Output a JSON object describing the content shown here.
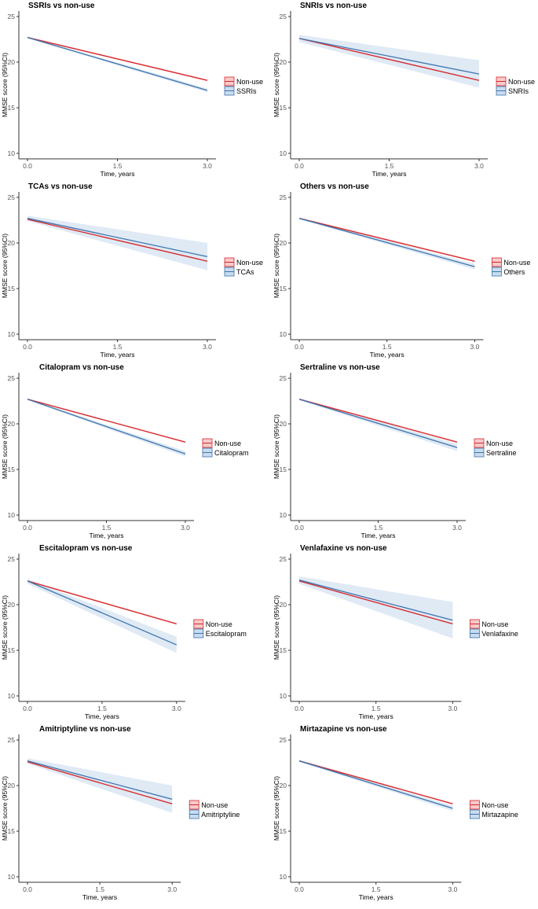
{
  "colors": {
    "nonuse": "#d7262b",
    "drug": "#3d74ad",
    "nonuse_ci": "#f6caca",
    "drug_ci": "#c9dcee",
    "axis": "#333333"
  },
  "chart_data": [
    {
      "type": "line",
      "title": "SSRIs vs non-use",
      "xlabel": "Time, years",
      "ylabel": "MMSE score (95%CI)",
      "xlim": [
        0,
        3
      ],
      "ylim": [
        10,
        25
      ],
      "xticks": [
        "0.0",
        "1.5",
        "3.0"
      ],
      "yticks": [
        "10",
        "15",
        "20",
        "25"
      ],
      "legend": "right",
      "series": [
        {
          "name": "Non-use",
          "x": [
            0,
            3
          ],
          "y": [
            22.7,
            18.0
          ],
          "lower": [
            22.6,
            17.9
          ],
          "upper": [
            22.8,
            18.1
          ]
        },
        {
          "name": "SSRIs",
          "x": [
            0,
            3
          ],
          "y": [
            22.7,
            16.9
          ],
          "lower": [
            22.6,
            16.7
          ],
          "upper": [
            22.8,
            17.1
          ]
        }
      ]
    },
    {
      "type": "line",
      "title": "SNRIs vs non-use",
      "xlabel": "Time, years",
      "ylabel": "MMSE score (95%CI)",
      "xlim": [
        0,
        3
      ],
      "ylim": [
        10,
        25
      ],
      "xticks": [
        "0.0",
        "1.5",
        "3.0"
      ],
      "yticks": [
        "10",
        "15",
        "20",
        "25"
      ],
      "legend": "right",
      "series": [
        {
          "name": "Non-use",
          "x": [
            0,
            3
          ],
          "y": [
            22.6,
            18.0
          ],
          "lower": [
            22.5,
            17.9
          ],
          "upper": [
            22.7,
            18.1
          ]
        },
        {
          "name": "SNRIs",
          "x": [
            0,
            3
          ],
          "y": [
            22.6,
            18.7
          ],
          "lower": [
            22.2,
            17.2
          ],
          "upper": [
            23.0,
            20.2
          ]
        }
      ]
    },
    {
      "type": "line",
      "title": "TCAs vs non-use",
      "xlabel": "Time, years",
      "ylabel": "MMSE score (95%CI)",
      "xlim": [
        0,
        3
      ],
      "ylim": [
        10,
        25
      ],
      "xticks": [
        "0.0",
        "1.5",
        "3.0"
      ],
      "yticks": [
        "10",
        "15",
        "20",
        "25"
      ],
      "legend": "right",
      "series": [
        {
          "name": "Non-use",
          "x": [
            0,
            3
          ],
          "y": [
            22.6,
            18.0
          ],
          "lower": [
            22.5,
            17.9
          ],
          "upper": [
            22.7,
            18.1
          ]
        },
        {
          "name": "TCAs",
          "x": [
            0,
            3
          ],
          "y": [
            22.7,
            18.5
          ],
          "lower": [
            22.4,
            17.0
          ],
          "upper": [
            23.0,
            20.0
          ]
        }
      ]
    },
    {
      "type": "line",
      "title": "Others vs non-use",
      "xlabel": "Time, years",
      "ylabel": "MMSE score (95%CI)",
      "xlim": [
        0,
        3
      ],
      "ylim": [
        10,
        25
      ],
      "xticks": [
        "0.0",
        "1.5",
        "3.0"
      ],
      "yticks": [
        "10",
        "15",
        "20",
        "25"
      ],
      "legend": "right",
      "series": [
        {
          "name": "Non-use",
          "x": [
            0,
            3
          ],
          "y": [
            22.7,
            18.0
          ],
          "lower": [
            22.6,
            17.9
          ],
          "upper": [
            22.8,
            18.1
          ]
        },
        {
          "name": "Others",
          "x": [
            0,
            3
          ],
          "y": [
            22.7,
            17.4
          ],
          "lower": [
            22.6,
            17.1
          ],
          "upper": [
            22.8,
            17.7
          ]
        }
      ]
    },
    {
      "type": "line",
      "title": "Citalopram vs non-use",
      "xlabel": "Time, years",
      "ylabel": "MMSE score (95%CI)",
      "xlim": [
        0,
        3
      ],
      "ylim": [
        10,
        25
      ],
      "xticks": [
        "0.0",
        "1.5",
        "3.0"
      ],
      "yticks": [
        "10",
        "15",
        "20",
        "25"
      ],
      "legend": "right",
      "series": [
        {
          "name": "Non-use",
          "x": [
            0,
            3
          ],
          "y": [
            22.7,
            18.0
          ],
          "lower": [
            22.6,
            17.9
          ],
          "upper": [
            22.8,
            18.1
          ]
        },
        {
          "name": "Citalopram",
          "x": [
            0,
            3
          ],
          "y": [
            22.7,
            16.7
          ],
          "lower": [
            22.6,
            16.4
          ],
          "upper": [
            22.8,
            17.0
          ]
        }
      ]
    },
    {
      "type": "line",
      "title": "Sertraline vs non-use",
      "xlabel": "Time, years",
      "ylabel": "MMSE score (95%CI)",
      "xlim": [
        0,
        3
      ],
      "ylim": [
        10,
        25
      ],
      "xticks": [
        "0.0",
        "1.5",
        "3.0"
      ],
      "yticks": [
        "10",
        "15",
        "20",
        "25"
      ],
      "legend": "right",
      "series": [
        {
          "name": "Non-use",
          "x": [
            0,
            3
          ],
          "y": [
            22.7,
            18.0
          ],
          "lower": [
            22.6,
            17.9
          ],
          "upper": [
            22.8,
            18.1
          ]
        },
        {
          "name": "Sertraline",
          "x": [
            0,
            3
          ],
          "y": [
            22.7,
            17.4
          ],
          "lower": [
            22.6,
            17.0
          ],
          "upper": [
            22.8,
            17.8
          ]
        }
      ]
    },
    {
      "type": "line",
      "title": "Escitalopram vs non-use",
      "xlabel": "Time, years",
      "ylabel": "MMSE score (95%CI)",
      "xlim": [
        0,
        3
      ],
      "ylim": [
        10,
        25
      ],
      "xticks": [
        "0.0",
        "1.5",
        "3.0"
      ],
      "yticks": [
        "10",
        "15",
        "20",
        "25"
      ],
      "legend": "right",
      "series": [
        {
          "name": "Non-use",
          "x": [
            0,
            3
          ],
          "y": [
            22.6,
            17.9
          ],
          "lower": [
            22.5,
            17.8
          ],
          "upper": [
            22.7,
            18.0
          ]
        },
        {
          "name": "Escitalopram",
          "x": [
            0,
            3
          ],
          "y": [
            22.6,
            15.6
          ],
          "lower": [
            22.3,
            14.7
          ],
          "upper": [
            22.8,
            16.5
          ]
        }
      ]
    },
    {
      "type": "line",
      "title": "Venlafaxine vs non-use",
      "xlabel": "Time, years",
      "ylabel": "MMSE score (95%CI)",
      "xlim": [
        0,
        3
      ],
      "ylim": [
        10,
        25
      ],
      "xticks": [
        "0.0",
        "1.5",
        "3.0"
      ],
      "yticks": [
        "10",
        "15",
        "20",
        "25"
      ],
      "legend": "right",
      "series": [
        {
          "name": "Non-use",
          "x": [
            0,
            3
          ],
          "y": [
            22.6,
            17.9
          ],
          "lower": [
            22.5,
            17.8
          ],
          "upper": [
            22.7,
            18.0
          ]
        },
        {
          "name": "Venlafaxine",
          "x": [
            0,
            3
          ],
          "y": [
            22.7,
            18.3
          ],
          "lower": [
            22.3,
            16.3
          ],
          "upper": [
            23.1,
            20.3
          ]
        }
      ]
    },
    {
      "type": "line",
      "title": "Amitriptyline vs non-use",
      "xlabel": "Time, years",
      "ylabel": "MMSE score (95%CI)",
      "xlim": [
        0,
        3
      ],
      "ylim": [
        10,
        25
      ],
      "xticks": [
        "0.0",
        "1.5",
        "3.0"
      ],
      "yticks": [
        "10",
        "15",
        "20",
        "25"
      ],
      "legend": "right",
      "series": [
        {
          "name": "Non-use",
          "x": [
            0,
            3
          ],
          "y": [
            22.6,
            18.0
          ],
          "lower": [
            22.5,
            17.9
          ],
          "upper": [
            22.7,
            18.1
          ]
        },
        {
          "name": "Amitriptyline",
          "x": [
            0,
            3
          ],
          "y": [
            22.7,
            18.5
          ],
          "lower": [
            22.4,
            17.0
          ],
          "upper": [
            23.0,
            20.0
          ]
        }
      ]
    },
    {
      "type": "line",
      "title": "Mirtazapine vs non-use",
      "xlabel": "Time, years",
      "ylabel": "MMSE score (95%CI)",
      "xlim": [
        0,
        3
      ],
      "ylim": [
        10,
        25
      ],
      "xticks": [
        "0.0",
        "1.5",
        "3.0"
      ],
      "yticks": [
        "10",
        "15",
        "20",
        "25"
      ],
      "legend": "right",
      "series": [
        {
          "name": "Non-use",
          "x": [
            0,
            3
          ],
          "y": [
            22.7,
            18.0
          ],
          "lower": [
            22.6,
            17.9
          ],
          "upper": [
            22.8,
            18.1
          ]
        },
        {
          "name": "Mirtazapine",
          "x": [
            0,
            3
          ],
          "y": [
            22.7,
            17.5
          ],
          "lower": [
            22.6,
            17.2
          ],
          "upper": [
            22.8,
            17.8
          ]
        }
      ]
    }
  ]
}
